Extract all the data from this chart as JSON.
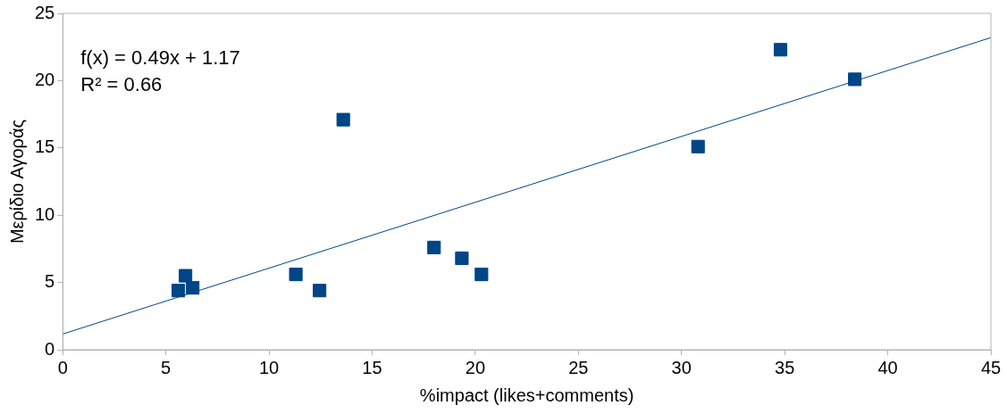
{
  "chart_data": {
    "type": "scatter",
    "xlabel": "%impact (likes+comments)",
    "ylabel": "Μερίδιο Αγοράς",
    "annotations": [
      "f(x) = 0.49x + 1.17",
      "R² = 0.66"
    ],
    "xlim": [
      0,
      45
    ],
    "xticks": [
      0,
      5,
      10,
      15,
      20,
      25,
      30,
      35,
      40,
      45
    ],
    "ylim": [
      0,
      25
    ],
    "yticks": [
      0,
      5,
      10,
      15,
      20,
      25
    ],
    "grid": false,
    "legend": false,
    "marker": "square",
    "series": [
      {
        "type": "scatter",
        "color": "#004586",
        "x": [
          34.8,
          38.4,
          13.6,
          30.8,
          18.0,
          19.35,
          20.3,
          11.3,
          12.45,
          5.95,
          5.6,
          6.3
        ],
        "values": [
          22.3,
          20.1,
          17.1,
          15.1,
          7.6,
          6.8,
          5.6,
          5.6,
          4.4,
          5.5,
          4.4,
          4.6
        ]
      },
      {
        "type": "line",
        "color": "#004586",
        "marker": "none",
        "x": [
          0,
          45
        ],
        "values": [
          1.17,
          23.2
        ]
      }
    ]
  }
}
